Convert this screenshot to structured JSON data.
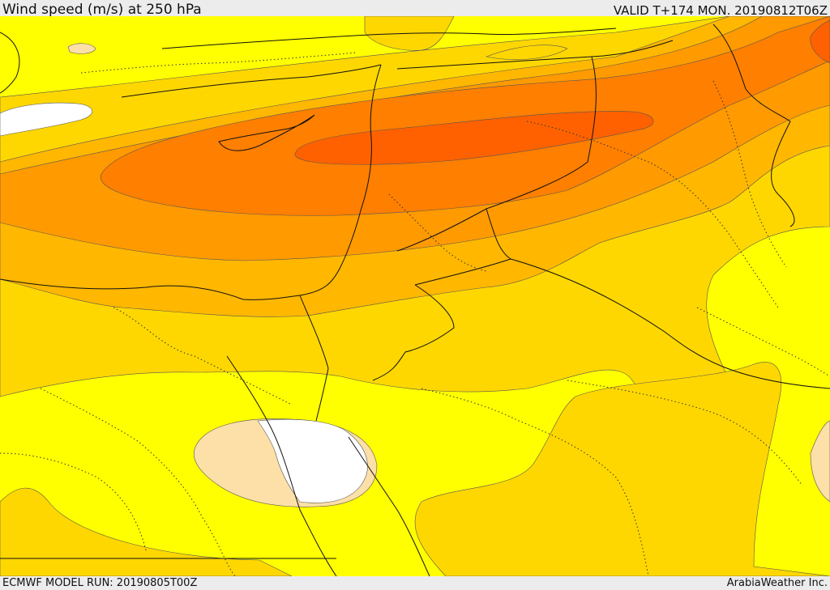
{
  "header": {
    "title": "Wind speed (m/s) at 250 hPa",
    "valid_time": "VALID T+174 MON. 20190812T06Z"
  },
  "footer": {
    "model_run": "ECMWF MODEL RUN: 20190805T00Z",
    "credit": "ArabiaWeather Inc."
  },
  "map": {
    "field": "wind speed at 250 hPa",
    "shading_colors": {
      "lowest": "#ffffff",
      "band_1": "#fde0a8",
      "band_2": "#ffff00",
      "band_3": "#ffd700",
      "band_4": "#ffb700",
      "band_5": "#ff9a00",
      "band_6": "#ff7f00",
      "band_7": "#ff6100"
    },
    "line_colors": {
      "contours": "#555555",
      "coastlines_and_borders": "#111111",
      "internal_borders": "#333333"
    }
  }
}
